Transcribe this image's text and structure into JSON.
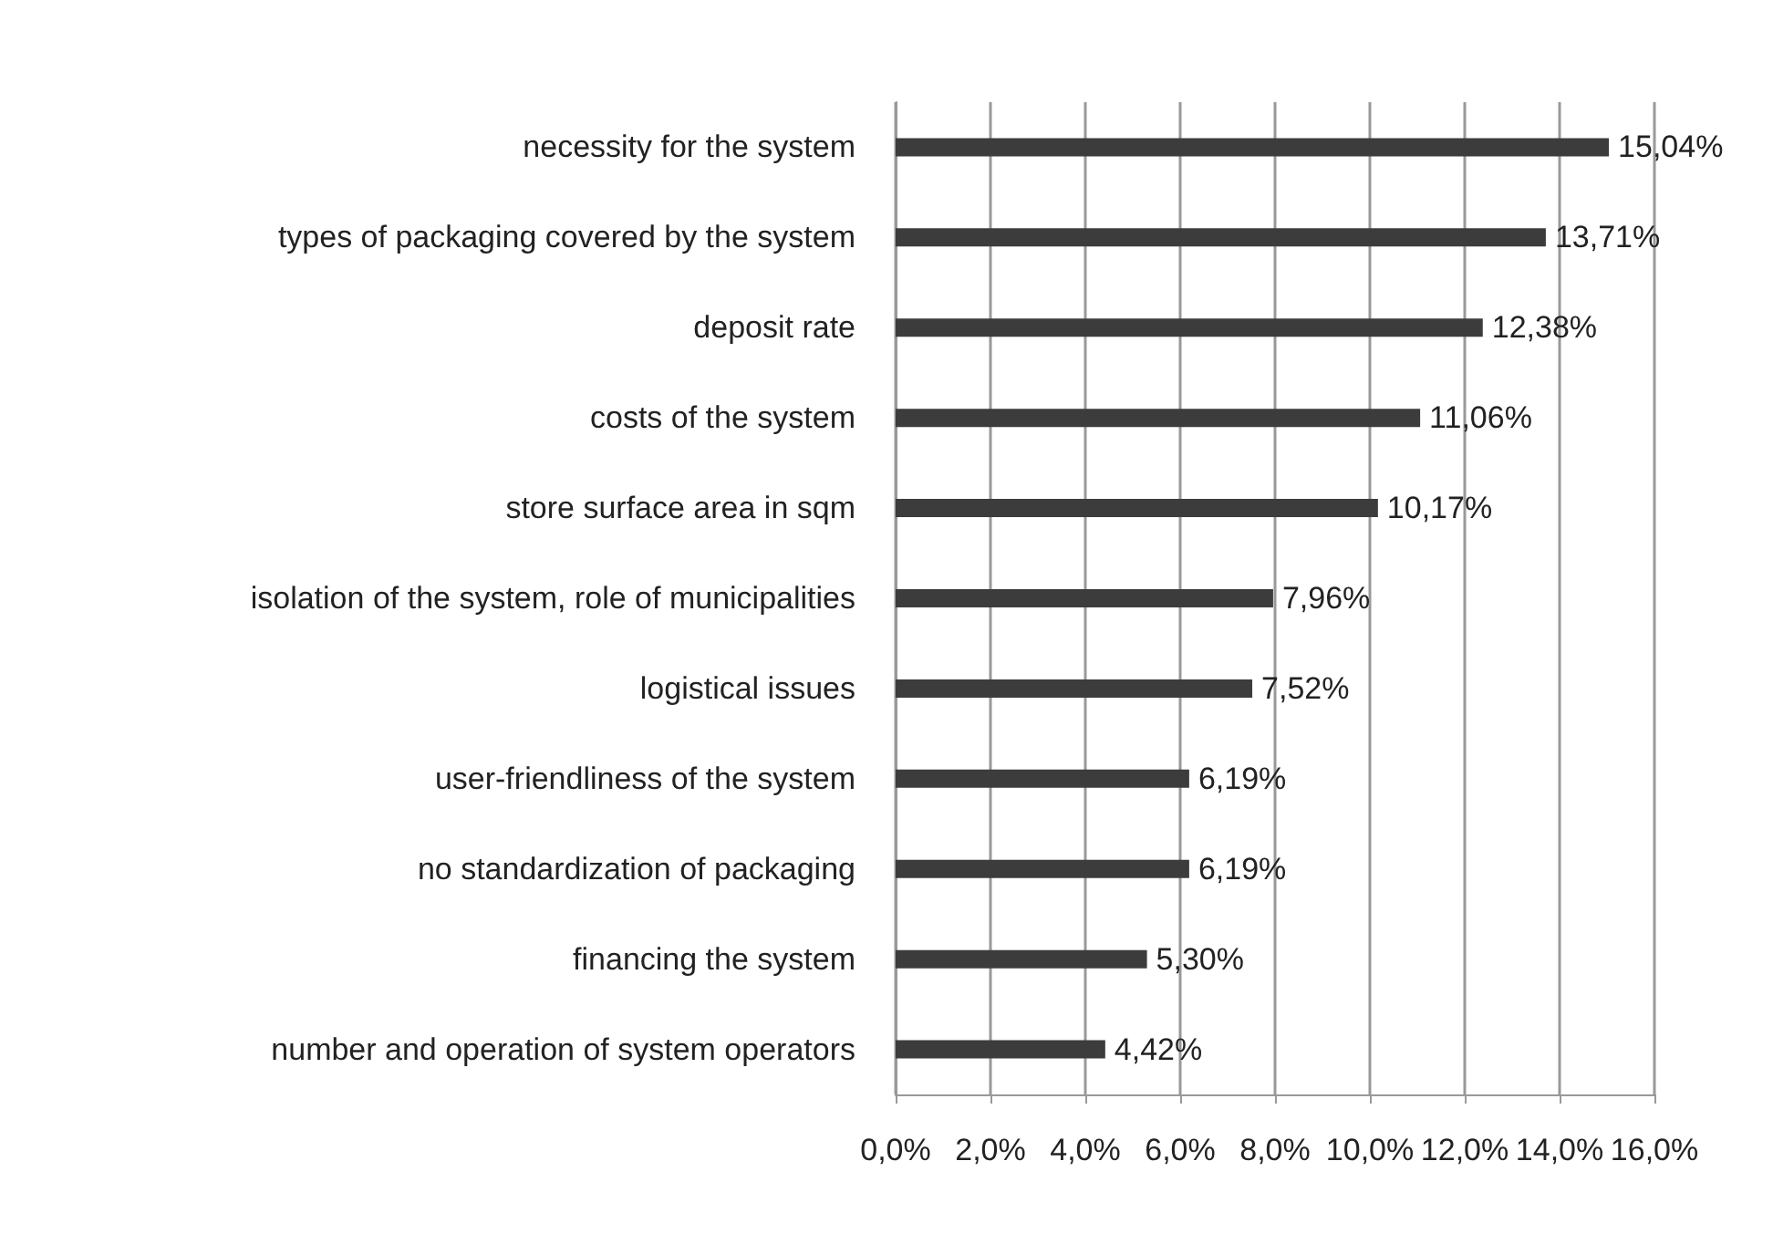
{
  "chart_data": {
    "type": "bar",
    "orientation": "horizontal",
    "categories": [
      "necessity for the system",
      "types of packaging covered by the system",
      "deposit rate",
      "costs of the system",
      "store surface area in sqm",
      "isolation of the system, role of municipalities",
      "logistical issues",
      "user-friendliness of the system",
      "no standardization of packaging",
      "financing the system",
      "number and operation of system operators"
    ],
    "values": [
      15.04,
      13.71,
      12.38,
      11.06,
      10.17,
      7.96,
      7.52,
      6.19,
      6.19,
      5.3,
      4.42
    ],
    "value_labels": [
      "15,04%",
      "13,71%",
      "12,38%",
      "11,06%",
      "10,17%",
      "7,96%",
      "7,52%",
      "6,19%",
      "6,19%",
      "5,30%",
      "4,42%"
    ],
    "color": "#3c3c3c",
    "xlim": [
      0,
      16
    ],
    "xticks": [
      {
        "value": 0,
        "label": "0,0%"
      },
      {
        "value": 2,
        "label": "2,0%"
      },
      {
        "value": 4,
        "label": "4,0%"
      },
      {
        "value": 6,
        "label": "6,0%"
      },
      {
        "value": 8,
        "label": "8,0%"
      },
      {
        "value": 10,
        "label": "10,0%"
      },
      {
        "value": 12,
        "label": "12,0%"
      },
      {
        "value": 14,
        "label": "14,0%"
      },
      {
        "value": 16,
        "label": "16,0%"
      }
    ],
    "grid": "x"
  }
}
